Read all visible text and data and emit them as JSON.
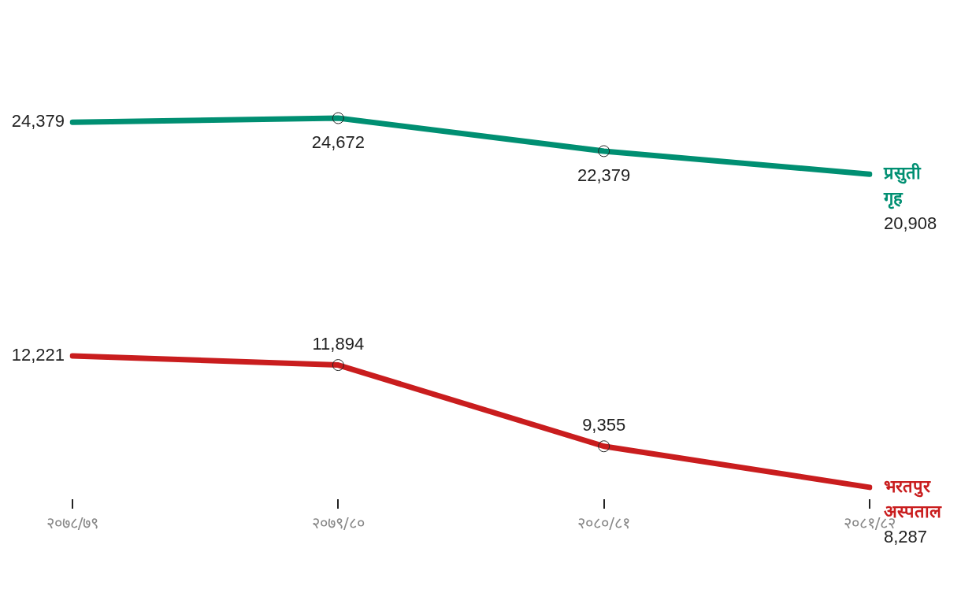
{
  "chart_data": {
    "type": "line",
    "categories": [
      "२०७८/७९",
      "२०७९/८०",
      "२०८०/८१",
      "२०८१/८२"
    ],
    "series": [
      {
        "name": "प्रसुती गृह",
        "color": "#008f72",
        "values": [
          24379,
          24672,
          22379,
          20908
        ],
        "value_labels": [
          "24,379",
          "24,672",
          "22,379",
          "20,908"
        ]
      },
      {
        "name": "भरतपुर अस्पताल",
        "color": "#c91d1e",
        "values": [
          12221,
          11894,
          9355,
          8287
        ],
        "value_labels": [
          "12,221",
          "11,894",
          "9,355",
          "8,287"
        ]
      }
    ],
    "log": true,
    "tick_labels": "x",
    "grid": false,
    "marker": "circle"
  }
}
